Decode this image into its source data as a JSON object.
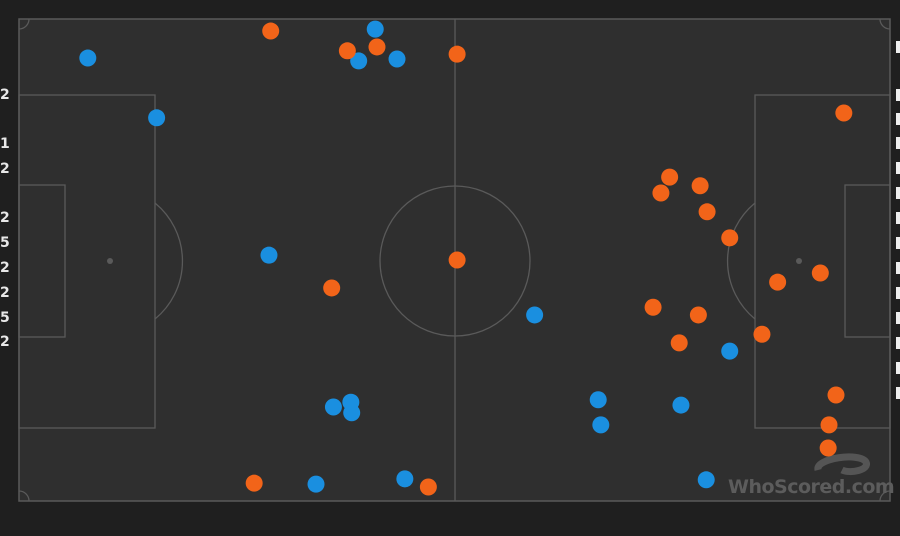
{
  "chart_data": {
    "type": "scatter",
    "title": "",
    "xlim": [
      0,
      100
    ],
    "ylim": [
      0,
      100
    ],
    "grid": false,
    "background": "football-pitch",
    "series": [
      {
        "color": "#1a8fe0",
        "points": [
          [
            7.9,
            8.1
          ],
          [
            15.8,
            20.5
          ],
          [
            28.7,
            49.0
          ],
          [
            40.9,
            2.1
          ],
          [
            39.0,
            8.7
          ],
          [
            43.4,
            8.3
          ],
          [
            59.2,
            61.4
          ],
          [
            81.6,
            68.9
          ],
          [
            36.1,
            80.5
          ],
          [
            38.1,
            79.5
          ],
          [
            38.2,
            81.7
          ],
          [
            66.5,
            79.0
          ],
          [
            66.8,
            84.2
          ],
          [
            76.0,
            80.1
          ],
          [
            34.1,
            96.5
          ],
          [
            44.3,
            95.4
          ],
          [
            78.9,
            95.6
          ]
        ]
      },
      {
        "color": "#f26419",
        "points": [
          [
            28.9,
            2.5
          ],
          [
            37.7,
            6.6
          ],
          [
            41.1,
            5.8
          ],
          [
            50.3,
            7.3
          ],
          [
            94.7,
            19.5
          ],
          [
            74.7,
            32.8
          ],
          [
            73.7,
            36.1
          ],
          [
            78.2,
            34.6
          ],
          [
            79.0,
            40.0
          ],
          [
            81.6,
            45.4
          ],
          [
            50.3,
            50.0
          ],
          [
            35.9,
            55.8
          ],
          [
            87.1,
            54.6
          ],
          [
            92.0,
            52.7
          ],
          [
            72.8,
            59.8
          ],
          [
            78.0,
            61.4
          ],
          [
            75.8,
            67.2
          ],
          [
            85.3,
            65.4
          ],
          [
            93.8,
            78.0
          ],
          [
            93.0,
            84.2
          ],
          [
            92.9,
            89.0
          ],
          [
            27.0,
            96.3
          ],
          [
            47.0,
            97.1
          ]
        ]
      }
    ]
  },
  "left_numbers": [
    "2",
    "1",
    "2",
    "2",
    "5",
    "2",
    "2",
    "5",
    "2"
  ],
  "watermark": "WhoScored.com"
}
